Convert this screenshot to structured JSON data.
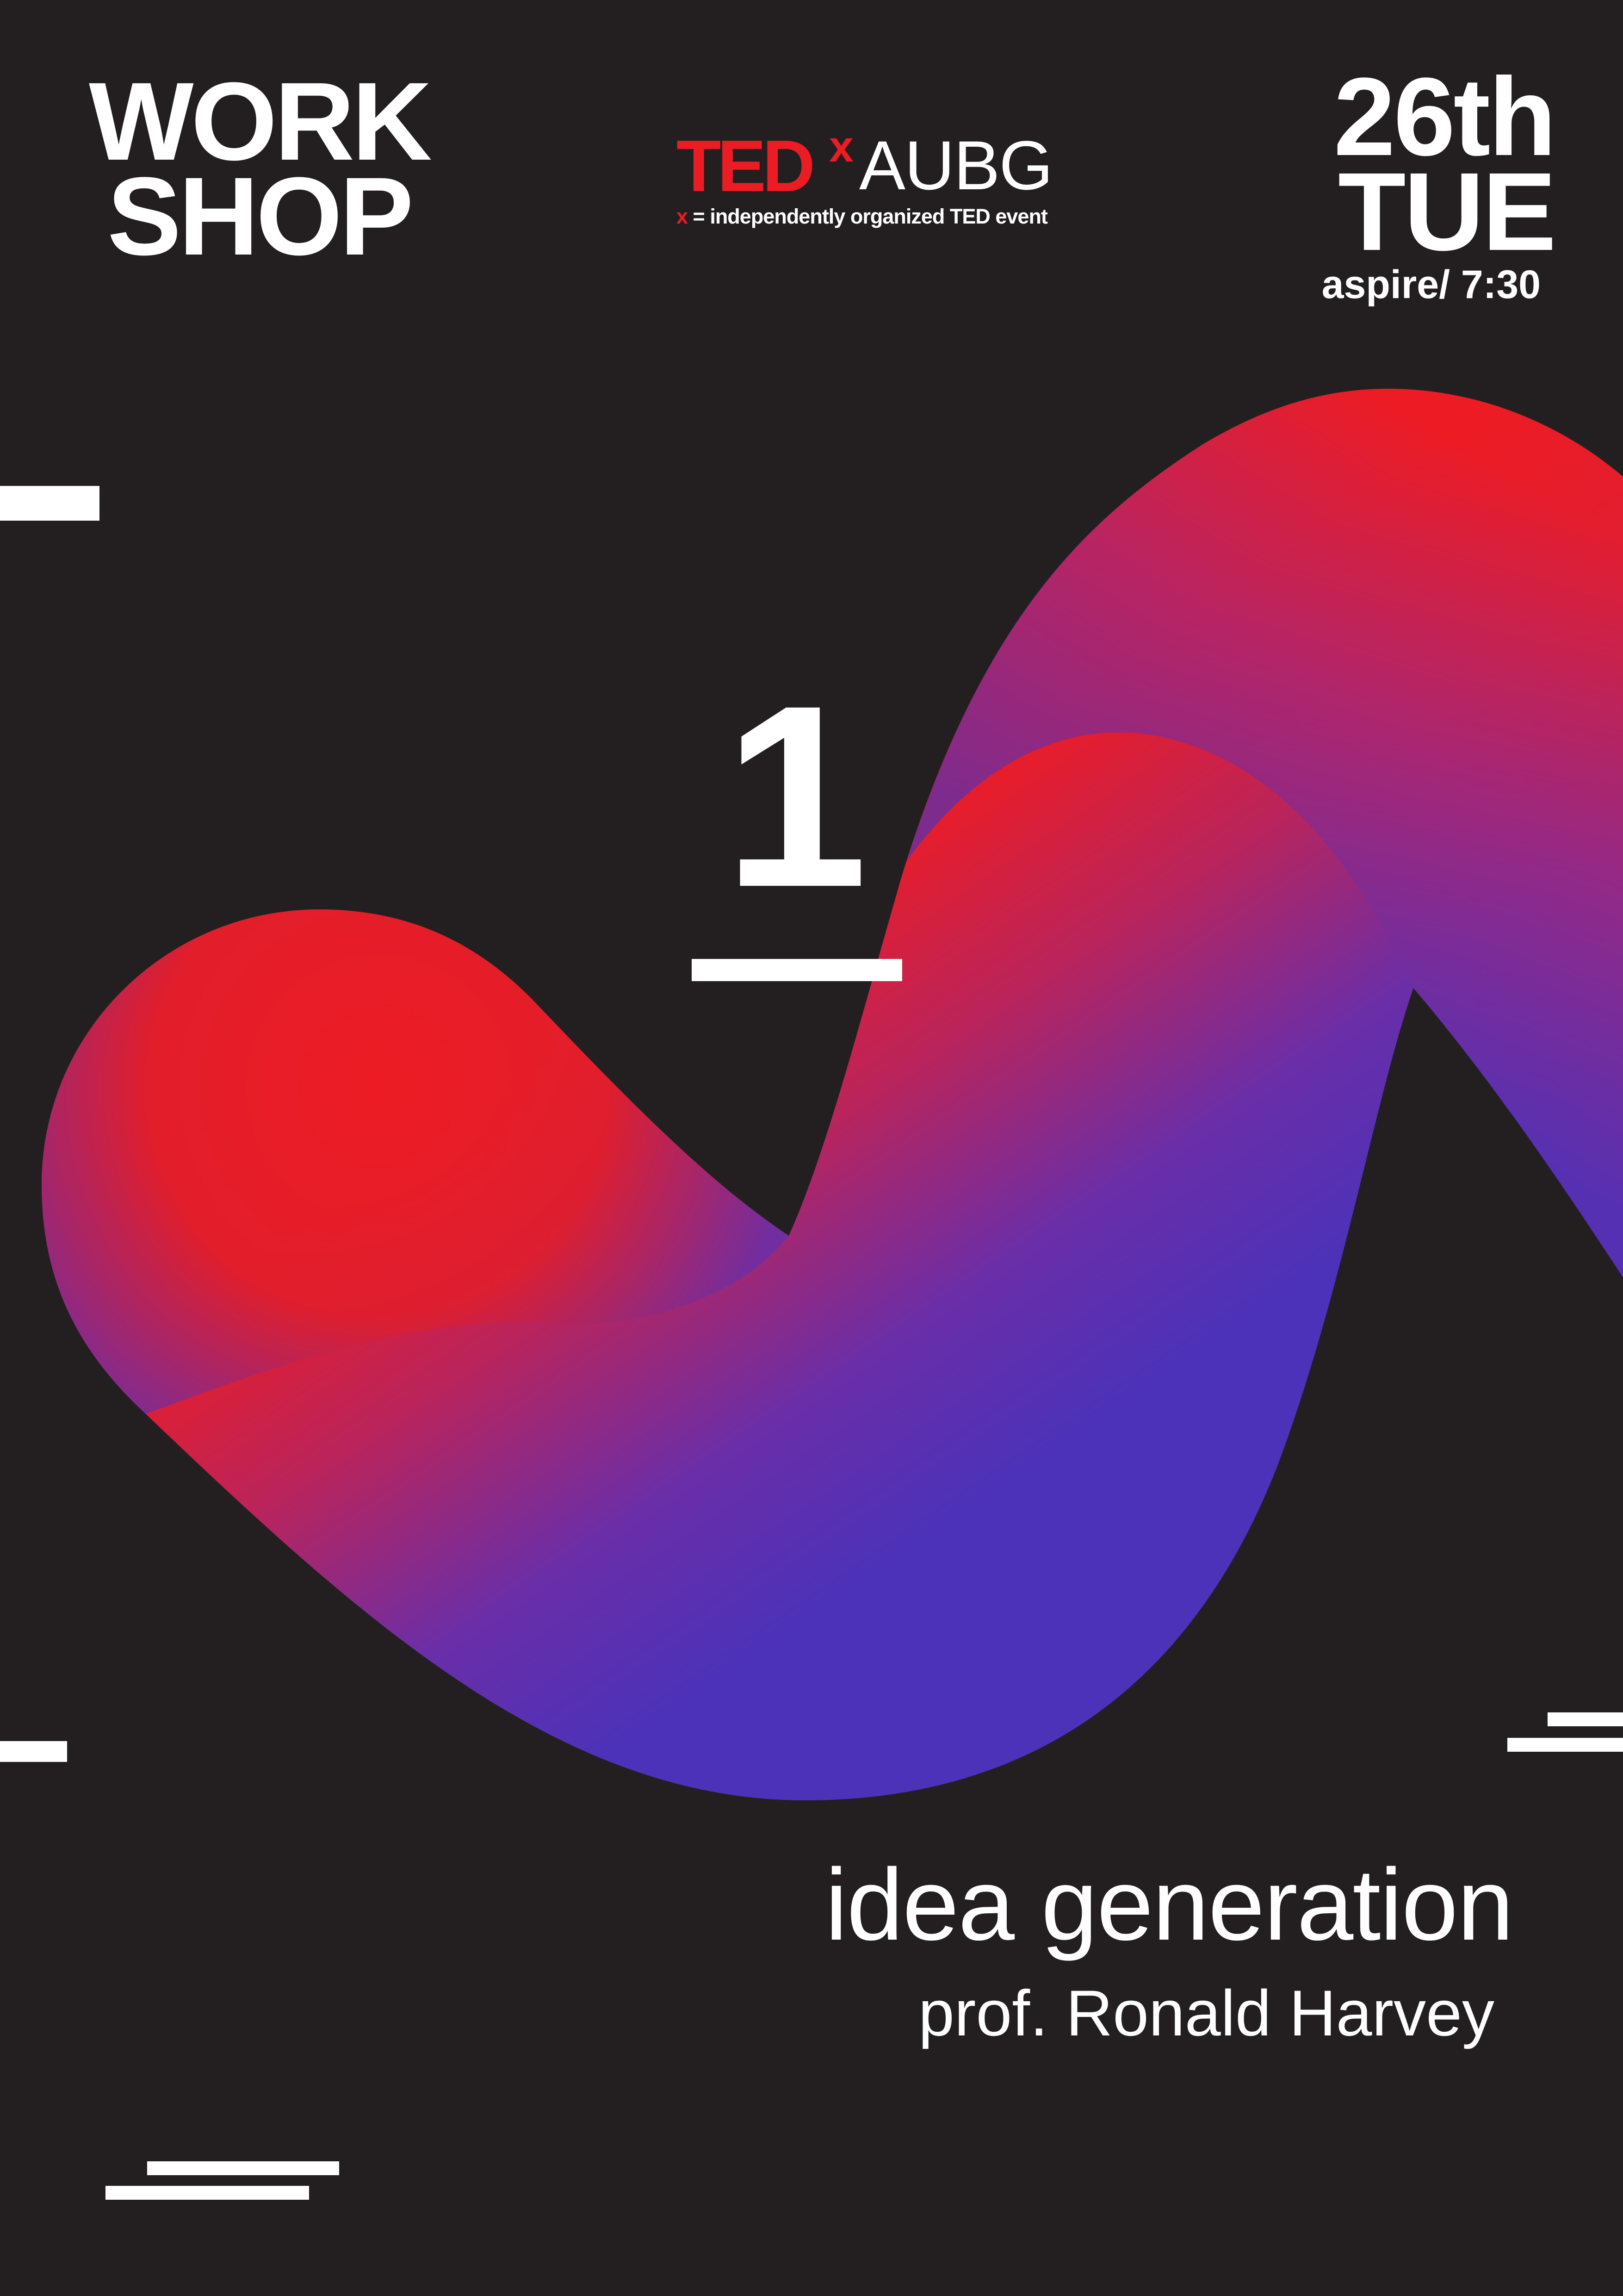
{
  "header": {
    "workshop_line1": "WORK",
    "workshop_line2": "SHOP"
  },
  "logo": {
    "brand": "TED",
    "x_mark": "x",
    "event_name": "AUBG",
    "tagline_x": "x",
    "tagline": " = independently organized TED event"
  },
  "date": {
    "day": "26th",
    "weekday": "TUE",
    "location_time": "aspire/ 7:30"
  },
  "workshop_number": "1",
  "talk": {
    "title": "idea generation",
    "speaker": "prof. Ronald Harvey"
  },
  "colors": {
    "background": "#231f20",
    "ted_red": "#eb1c24",
    "gradient_red": "#ed1c24",
    "gradient_blue": "#4b32b8",
    "text": "#ffffff"
  }
}
